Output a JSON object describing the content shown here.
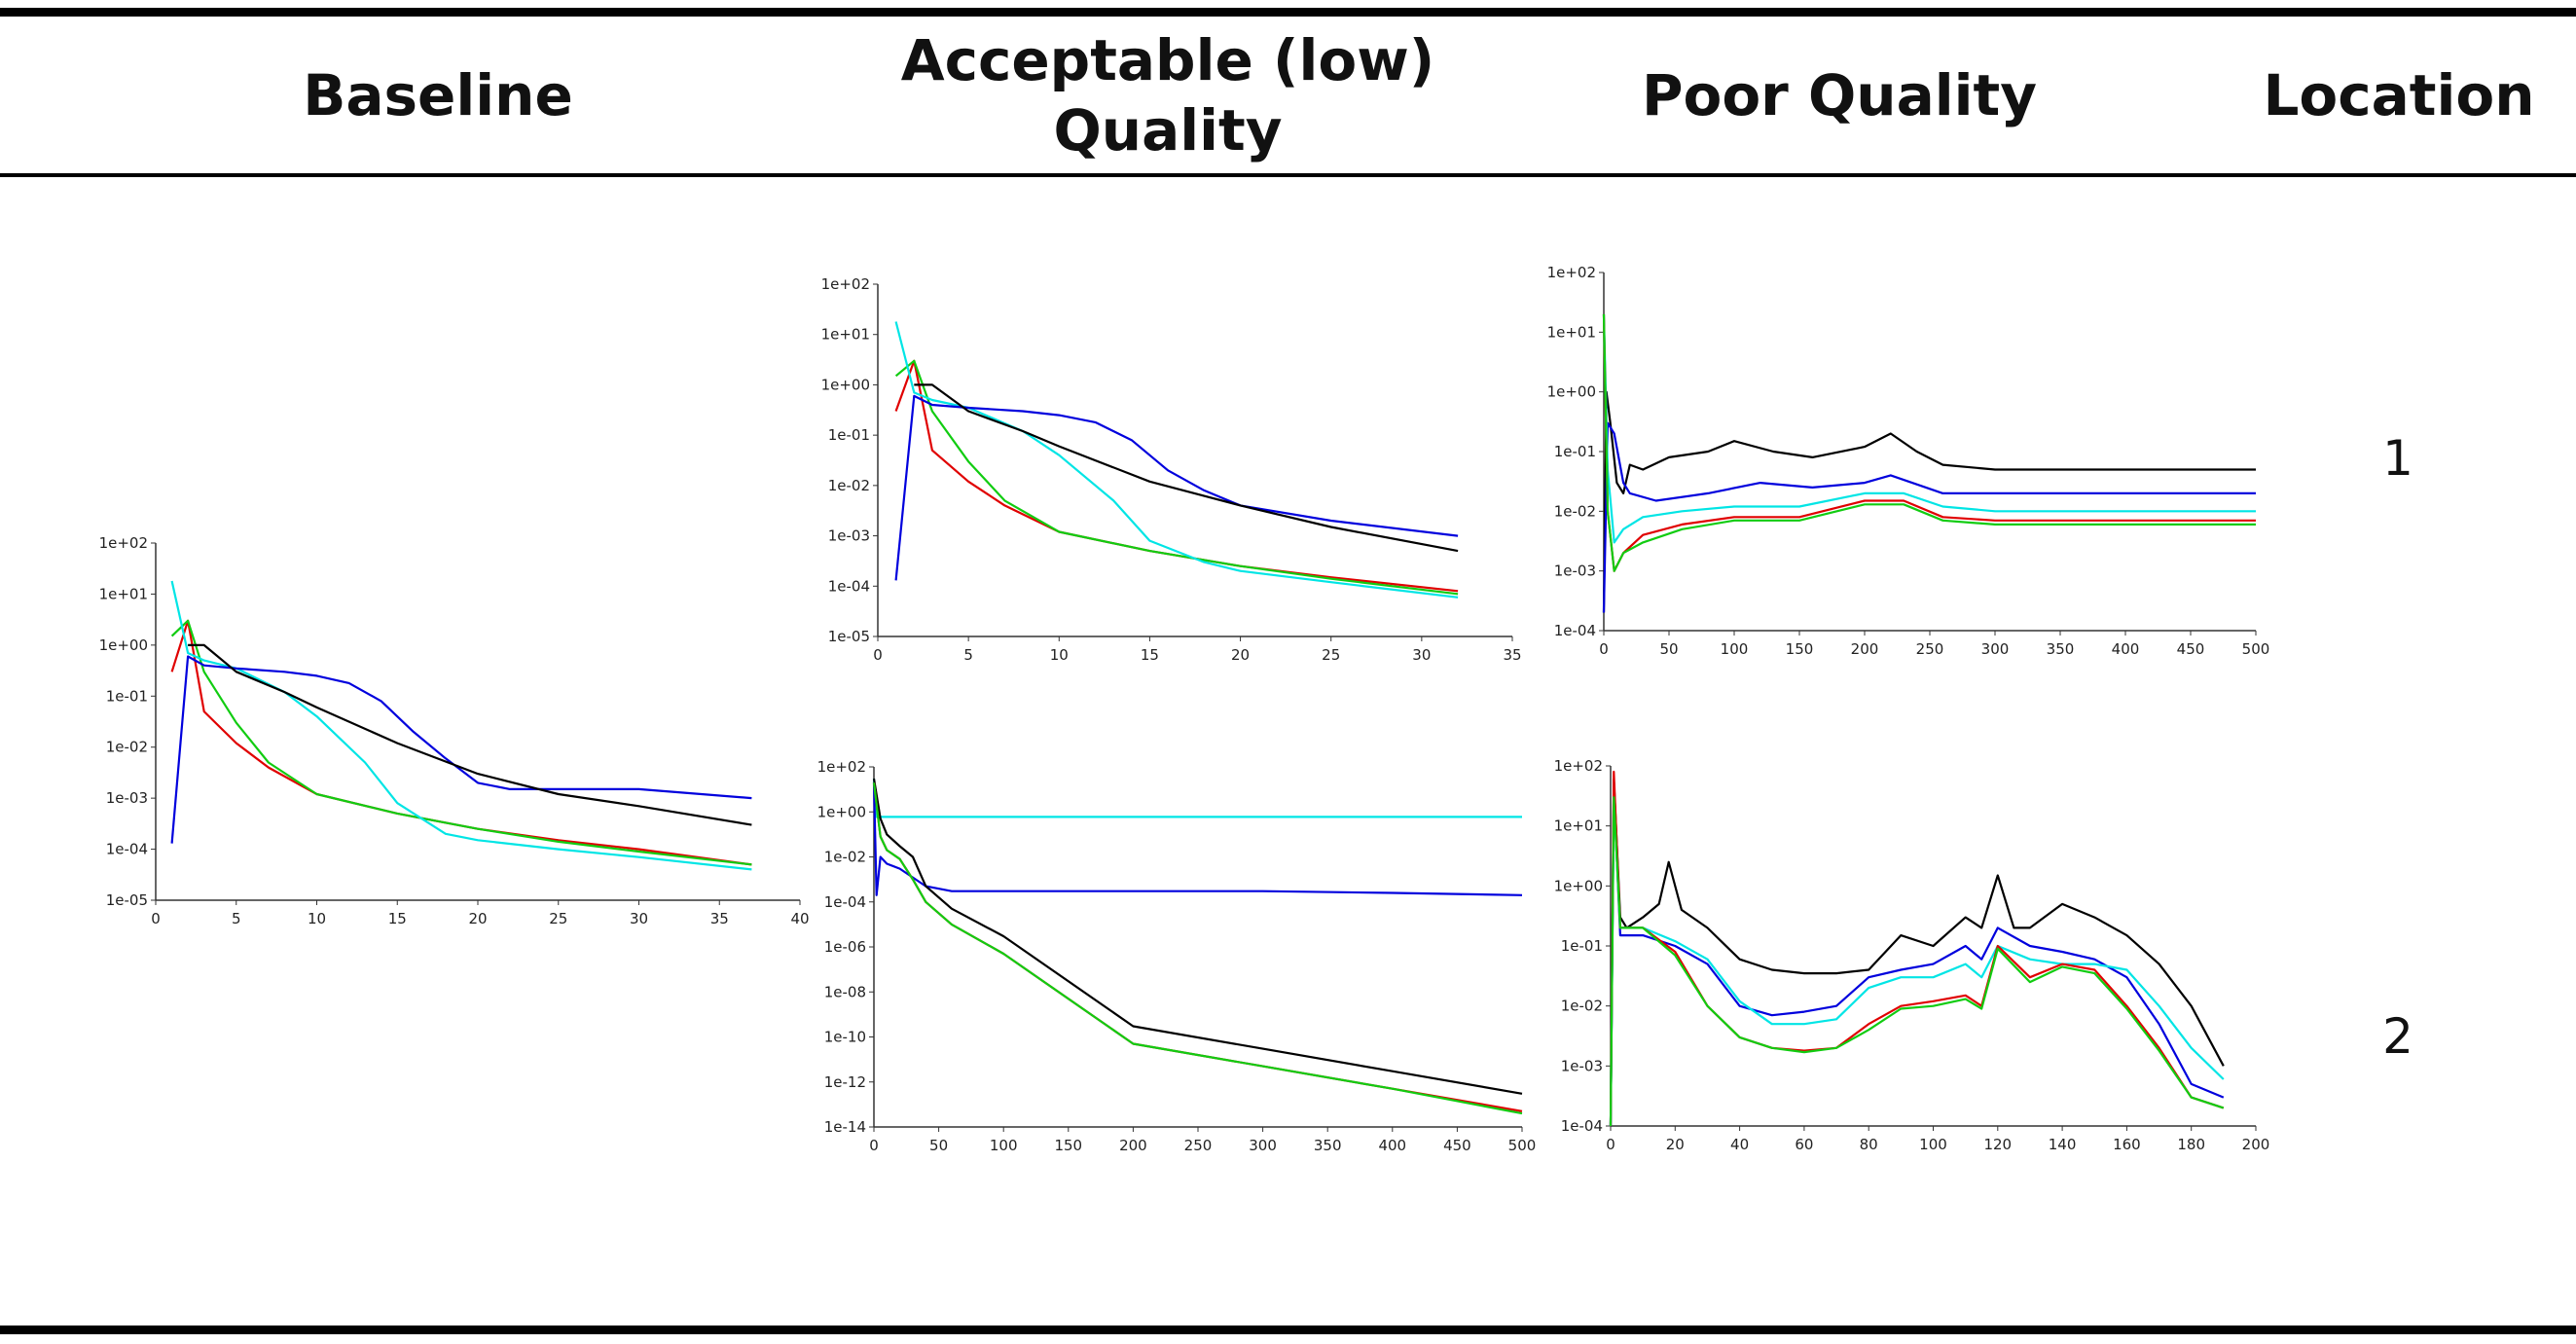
{
  "header": {
    "col_baseline": "Baseline",
    "col_acceptable_line1": "Acceptable (low)",
    "col_acceptable_line2": "Quality",
    "col_poor": "Poor Quality",
    "col_location": "Location"
  },
  "locations": [
    "1",
    "2"
  ],
  "colors": {
    "black": "#000000",
    "red": "#e00000",
    "green": "#11cc11",
    "blue": "#0000dd",
    "cyan": "#00e5e5"
  },
  "chart_data": [
    {
      "id": "baseline",
      "type": "line",
      "yscale": "log",
      "xlim": [
        0,
        40
      ],
      "ylim": [
        1e-05,
        100
      ],
      "xticks": [
        "0",
        "5",
        "10",
        "15",
        "20",
        "25",
        "30",
        "35",
        "40"
      ],
      "yticks": [
        "1e-05",
        "1e-04",
        "1e-03",
        "1e-02",
        "1e-01",
        "1e+00",
        "1e+01",
        "1e+02"
      ],
      "series": [
        {
          "color": "red",
          "x": [
            1,
            2,
            3,
            5,
            7,
            10,
            15,
            20,
            25,
            30,
            37
          ],
          "y": [
            0.3,
            3,
            0.05,
            0.012,
            0.004,
            0.0012,
            0.0005,
            0.00025,
            0.00015,
            0.0001,
            5e-05
          ]
        },
        {
          "color": "green",
          "x": [
            1,
            2,
            3,
            5,
            7,
            10,
            15,
            20,
            25,
            30,
            37
          ],
          "y": [
            1.5,
            3,
            0.3,
            0.03,
            0.005,
            0.0012,
            0.0005,
            0.00025,
            0.00014,
            9e-05,
            5e-05
          ]
        },
        {
          "color": "cyan",
          "x": [
            1,
            2,
            3,
            5,
            8,
            10,
            13,
            15,
            18,
            20,
            25,
            30,
            37
          ],
          "y": [
            18,
            0.7,
            0.5,
            0.35,
            0.12,
            0.04,
            0.005,
            0.0008,
            0.0002,
            0.00015,
            0.0001,
            7e-05,
            4e-05
          ]
        },
        {
          "color": "blue",
          "x": [
            1,
            2,
            3,
            5,
            8,
            10,
            12,
            14,
            16,
            18,
            20,
            22,
            25,
            30,
            37
          ],
          "y": [
            0.00013,
            0.6,
            0.4,
            0.35,
            0.3,
            0.25,
            0.18,
            0.08,
            0.02,
            0.006,
            0.002,
            0.0015,
            0.0015,
            0.0015,
            0.001
          ]
        },
        {
          "color": "black",
          "x": [
            2,
            3,
            5,
            8,
            10,
            15,
            20,
            25,
            30,
            37
          ],
          "y": [
            1.0,
            1.0,
            0.3,
            0.12,
            0.06,
            0.012,
            0.003,
            0.0012,
            0.0007,
            0.0003
          ]
        }
      ]
    },
    {
      "id": "acceptable_loc1",
      "type": "line",
      "yscale": "log",
      "xlim": [
        0,
        35
      ],
      "ylim": [
        1e-05,
        100
      ],
      "xticks": [
        "0",
        "5",
        "10",
        "15",
        "20",
        "25",
        "30",
        "35"
      ],
      "yticks": [
        "1e-05",
        "1e-04",
        "1e-03",
        "1e-02",
        "1e-01",
        "1e+00",
        "1e+01",
        "1e+02"
      ],
      "series": [
        {
          "color": "red",
          "x": [
            1,
            2,
            3,
            5,
            7,
            10,
            15,
            20,
            25,
            32
          ],
          "y": [
            0.3,
            3,
            0.05,
            0.012,
            0.004,
            0.0012,
            0.0005,
            0.00025,
            0.00015,
            8e-05
          ]
        },
        {
          "color": "green",
          "x": [
            1,
            2,
            3,
            5,
            7,
            10,
            15,
            20,
            25,
            32
          ],
          "y": [
            1.5,
            3,
            0.3,
            0.03,
            0.005,
            0.0012,
            0.0005,
            0.00025,
            0.00014,
            7e-05
          ]
        },
        {
          "color": "cyan",
          "x": [
            1,
            2,
            3,
            5,
            8,
            10,
            13,
            15,
            18,
            20,
            25,
            32
          ],
          "y": [
            18,
            0.7,
            0.5,
            0.35,
            0.12,
            0.04,
            0.005,
            0.0008,
            0.0003,
            0.0002,
            0.00012,
            6e-05
          ]
        },
        {
          "color": "blue",
          "x": [
            1,
            2,
            3,
            5,
            8,
            10,
            12,
            14,
            16,
            18,
            20,
            25,
            32
          ],
          "y": [
            0.00013,
            0.6,
            0.4,
            0.35,
            0.3,
            0.25,
            0.18,
            0.08,
            0.02,
            0.008,
            0.004,
            0.002,
            0.001
          ]
        },
        {
          "color": "black",
          "x": [
            2,
            3,
            5,
            8,
            10,
            15,
            20,
            25,
            32
          ],
          "y": [
            1.0,
            1.0,
            0.3,
            0.12,
            0.06,
            0.012,
            0.004,
            0.0015,
            0.0005
          ]
        }
      ]
    },
    {
      "id": "acceptable_loc2",
      "type": "line",
      "yscale": "log",
      "xlim": [
        0,
        500
      ],
      "ylim": [
        1e-14,
        100
      ],
      "xticks": [
        "0",
        "50",
        "100",
        "150",
        "200",
        "250",
        "300",
        "350",
        "400",
        "450",
        "500"
      ],
      "yticks": [
        "1e-14",
        "1e-12",
        "1e-10",
        "1e-08",
        "1e-06",
        "1e-04",
        "1e-02",
        "1e+00",
        "1e+02"
      ],
      "series": [
        {
          "color": "cyan",
          "x": [
            0,
            2,
            5,
            500
          ],
          "y": [
            30,
            0.6,
            0.6,
            0.6
          ]
        },
        {
          "color": "blue",
          "x": [
            0,
            2,
            5,
            10,
            20,
            40,
            60,
            100,
            200,
            300,
            400,
            500
          ],
          "y": [
            20,
            0.0002,
            0.01,
            0.005,
            0.003,
            0.0005,
            0.0003,
            0.0003,
            0.0003,
            0.0003,
            0.00025,
            0.0002
          ]
        },
        {
          "color": "black",
          "x": [
            0,
            5,
            10,
            20,
            30,
            40,
            60,
            100,
            200,
            300,
            400,
            500
          ],
          "y": [
            30,
            0.5,
            0.1,
            0.03,
            0.01,
            0.0005,
            5e-05,
            3e-06,
            3e-10,
            3e-11,
            3e-12,
            3e-13
          ]
        },
        {
          "color": "red",
          "x": [
            0,
            5,
            10,
            20,
            30,
            40,
            60,
            100,
            200,
            300,
            400,
            500
          ],
          "y": [
            20,
            0.08,
            0.02,
            0.008,
            0.001,
            0.0001,
            1e-05,
            5e-07,
            5e-11,
            5e-12,
            5e-13,
            5e-14
          ]
        },
        {
          "color": "green",
          "x": [
            0,
            5,
            10,
            20,
            30,
            40,
            60,
            100,
            200,
            300,
            400,
            500
          ],
          "y": [
            20,
            0.08,
            0.02,
            0.008,
            0.001,
            0.0001,
            1e-05,
            5e-07,
            5e-11,
            5e-12,
            5e-13,
            4e-14
          ]
        }
      ]
    },
    {
      "id": "poor_loc1",
      "type": "line",
      "yscale": "log",
      "xlim": [
        0,
        500
      ],
      "ylim": [
        0.0001,
        100
      ],
      "xticks": [
        "0",
        "50",
        "100",
        "150",
        "200",
        "250",
        "300",
        "350",
        "400",
        "450",
        "500"
      ],
      "yticks": [
        "1e-04",
        "1e-03",
        "1e-02",
        "1e-01",
        "1e+00",
        "1e+01",
        "1e+02"
      ],
      "series": [
        {
          "color": "black",
          "x": [
            0,
            2,
            5,
            10,
            15,
            20,
            30,
            50,
            80,
            100,
            130,
            160,
            200,
            220,
            240,
            260,
            300,
            400,
            500
          ],
          "y": [
            0.0002,
            1.0,
            0.3,
            0.03,
            0.02,
            0.06,
            0.05,
            0.08,
            0.1,
            0.15,
            0.1,
            0.08,
            0.12,
            0.2,
            0.1,
            0.06,
            0.05,
            0.05,
            0.05
          ]
        },
        {
          "color": "blue",
          "x": [
            0,
            3,
            8,
            15,
            20,
            40,
            80,
            120,
            160,
            200,
            220,
            260,
            300,
            400,
            500
          ],
          "y": [
            0.0002,
            0.3,
            0.2,
            0.03,
            0.02,
            0.015,
            0.02,
            0.03,
            0.025,
            0.03,
            0.04,
            0.02,
            0.02,
            0.02,
            0.02
          ]
        },
        {
          "color": "cyan",
          "x": [
            0,
            3,
            8,
            15,
            30,
            60,
            100,
            150,
            200,
            230,
            260,
            300,
            400,
            500
          ],
          "y": [
            20,
            0.05,
            0.003,
            0.005,
            0.008,
            0.01,
            0.012,
            0.012,
            0.02,
            0.02,
            0.012,
            0.01,
            0.01,
            0.01
          ]
        },
        {
          "color": "red",
          "x": [
            0,
            3,
            8,
            15,
            30,
            60,
            100,
            150,
            200,
            230,
            260,
            300,
            400,
            500
          ],
          "y": [
            20,
            0.01,
            0.001,
            0.002,
            0.004,
            0.006,
            0.008,
            0.008,
            0.015,
            0.015,
            0.008,
            0.007,
            0.007,
            0.007
          ]
        },
        {
          "color": "green",
          "x": [
            0,
            3,
            8,
            15,
            30,
            60,
            100,
            150,
            200,
            230,
            260,
            300,
            400,
            500
          ],
          "y": [
            20,
            0.01,
            0.001,
            0.002,
            0.003,
            0.005,
            0.007,
            0.007,
            0.013,
            0.013,
            0.007,
            0.006,
            0.006,
            0.006
          ]
        }
      ]
    },
    {
      "id": "poor_loc2",
      "type": "line",
      "yscale": "log",
      "xlim": [
        0,
        200
      ],
      "ylim": [
        0.0001,
        100
      ],
      "xticks": [
        "0",
        "20",
        "40",
        "60",
        "80",
        "100",
        "120",
        "140",
        "160",
        "180",
        "200"
      ],
      "yticks": [
        "1e-04",
        "1e-03",
        "1e-02",
        "1e-01",
        "1e+00",
        "1e+01",
        "1e+02"
      ],
      "series": [
        {
          "color": "black",
          "x": [
            0,
            1,
            3,
            5,
            10,
            15,
            18,
            22,
            30,
            40,
            50,
            60,
            70,
            80,
            90,
            100,
            110,
            115,
            120,
            125,
            130,
            140,
            150,
            160,
            170,
            180,
            190
          ],
          "y": [
            0.0001,
            60,
            0.3,
            0.2,
            0.3,
            0.5,
            2.5,
            0.4,
            0.2,
            0.06,
            0.04,
            0.035,
            0.035,
            0.04,
            0.15,
            0.1,
            0.3,
            0.2,
            1.5,
            0.2,
            0.2,
            0.5,
            0.3,
            0.15,
            0.05,
            0.01,
            0.001
          ]
        },
        {
          "color": "blue",
          "x": [
            0,
            1,
            3,
            10,
            20,
            30,
            40,
            50,
            60,
            70,
            80,
            90,
            100,
            110,
            115,
            120,
            130,
            140,
            150,
            160,
            170,
            180,
            190
          ],
          "y": [
            0.0001,
            40,
            0.15,
            0.15,
            0.1,
            0.05,
            0.01,
            0.007,
            0.008,
            0.01,
            0.03,
            0.04,
            0.05,
            0.1,
            0.06,
            0.2,
            0.1,
            0.08,
            0.06,
            0.03,
            0.005,
            0.0005,
            0.0003
          ]
        },
        {
          "color": "cyan",
          "x": [
            0,
            1,
            3,
            10,
            20,
            30,
            40,
            50,
            60,
            70,
            80,
            90,
            100,
            110,
            115,
            120,
            130,
            140,
            150,
            160,
            170,
            180,
            190
          ],
          "y": [
            0.0001,
            30,
            0.2,
            0.2,
            0.12,
            0.06,
            0.012,
            0.005,
            0.005,
            0.006,
            0.02,
            0.03,
            0.03,
            0.05,
            0.03,
            0.1,
            0.06,
            0.05,
            0.05,
            0.04,
            0.01,
            0.002,
            0.0006
          ]
        },
        {
          "color": "red",
          "x": [
            0,
            1,
            3,
            10,
            20,
            30,
            40,
            50,
            60,
            70,
            80,
            90,
            100,
            110,
            115,
            120,
            130,
            140,
            150,
            160,
            170,
            180,
            190
          ],
          "y": [
            0.0001,
            80,
            0.2,
            0.2,
            0.08,
            0.01,
            0.003,
            0.002,
            0.0018,
            0.002,
            0.005,
            0.01,
            0.012,
            0.015,
            0.01,
            0.1,
            0.03,
            0.05,
            0.04,
            0.01,
            0.002,
            0.0003,
            0.0002
          ]
        },
        {
          "color": "green",
          "x": [
            0,
            1,
            3,
            10,
            20,
            30,
            40,
            50,
            60,
            70,
            80,
            90,
            100,
            110,
            115,
            120,
            130,
            140,
            150,
            160,
            170,
            180,
            190
          ],
          "y": [
            0.0001,
            30,
            0.2,
            0.2,
            0.07,
            0.01,
            0.003,
            0.002,
            0.0017,
            0.002,
            0.004,
            0.009,
            0.01,
            0.013,
            0.009,
            0.09,
            0.025,
            0.045,
            0.035,
            0.009,
            0.0018,
            0.0003,
            0.0002
          ]
        }
      ]
    }
  ]
}
